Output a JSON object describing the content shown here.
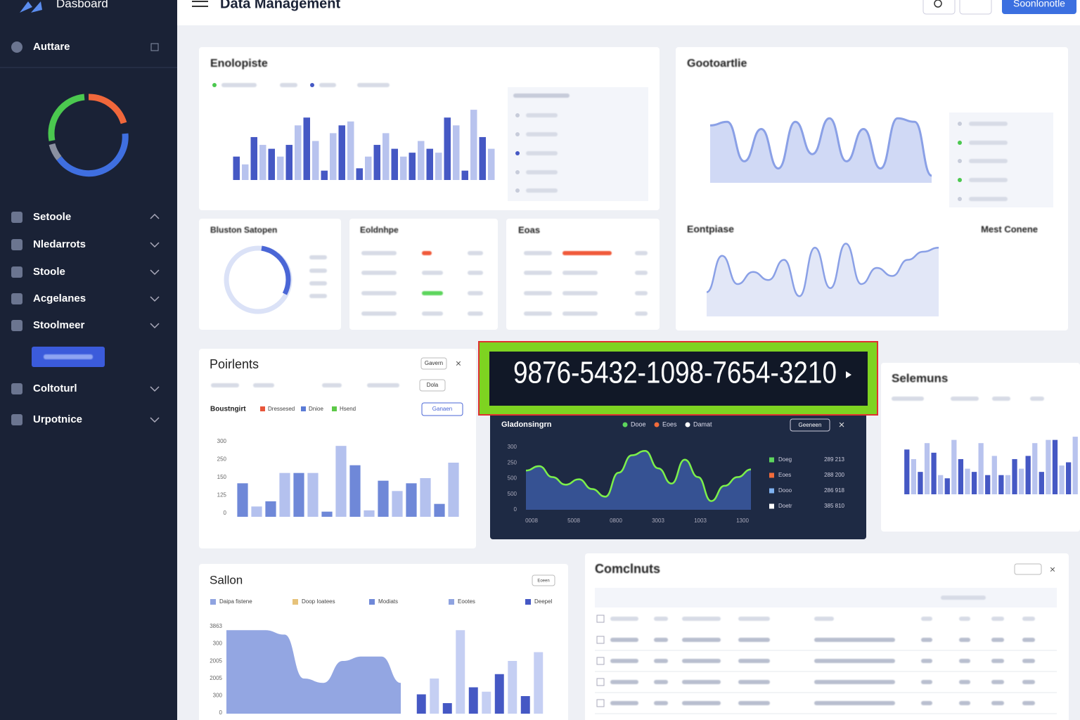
{
  "sidebar": {
    "brand": "Dasboard",
    "top_item": "Auttare",
    "menu": [
      "Setoole",
      "Nledarrots",
      "Stoole",
      "Acgelanes",
      "Stoolmeer",
      "Coltoturl",
      "Urpotnice"
    ]
  },
  "header": {
    "title": "Data Management",
    "button": "Soonlonotle"
  },
  "popup": {
    "text": "9876-5432-1098-7654-3210"
  },
  "cards": {
    "overview": {
      "title": "Enolopiste",
      "ylim": [
        0,
        100
      ],
      "series": [
        {
          "color": "#4558c4",
          "values": [
            30,
            55,
            40,
            45,
            80,
            12,
            70,
            15,
            45,
            40,
            35,
            40,
            80,
            12,
            55
          ]
        },
        {
          "color": "#b8c3ee",
          "values": [
            20,
            45,
            30,
            70,
            50,
            60,
            75,
            30,
            60,
            30,
            50,
            35,
            70,
            90,
            40
          ]
        }
      ]
    },
    "trends": {
      "title": "Gootoartlie",
      "ylim": [
        0,
        100
      ],
      "values": [
        80,
        85,
        30,
        75,
        20,
        85,
        40,
        90,
        30,
        75,
        20,
        90,
        85,
        10
      ]
    },
    "segments": {
      "title": "Eontpiase",
      "subtitle": "Mest Conene",
      "ylim": [
        0,
        100
      ],
      "values": [
        30,
        75,
        40,
        55,
        45,
        70,
        25,
        85,
        35,
        90,
        40,
        60,
        50,
        70,
        80,
        85
      ]
    },
    "ring": {
      "title": "Bluston Satopen"
    },
    "ledger": {
      "title": "Eoldnhpe"
    },
    "eoas": {
      "title": "Eoas"
    },
    "poirlents": {
      "title": "Poirlents",
      "buttons": [
        "Gavern",
        "Dola"
      ],
      "subtitle": "Boustngirt",
      "legend": [
        {
          "name": "Dressesed",
          "color": "#e8553a"
        },
        {
          "name": "Dnioe",
          "color": "#5b7bd6"
        },
        {
          "name": "Hsend",
          "color": "#5dc948"
        }
      ],
      "action": "Ganaen",
      "yaxis_labels": [
        "300",
        "250",
        "150",
        "125",
        "0"
      ],
      "ylim": [
        0,
        300
      ],
      "series": [
        {
          "color": "#6f88d8",
          "values": [
            130,
            60,
            170,
            20,
            200,
            140,
            130,
            50
          ]
        },
        {
          "color": "#b4c1ee",
          "values": [
            40,
            170,
            170,
            275,
            25,
            100,
            150,
            210
          ]
        }
      ]
    },
    "gladonsingrn": {
      "title": "Gladonsingrn",
      "button": "Geeneen",
      "legend": [
        {
          "name": "Dooe",
          "color": "#5dd55d"
        },
        {
          "name": "Eoes",
          "color": "#f26b3a"
        },
        {
          "name": "Damat",
          "color": "#ffffff"
        }
      ],
      "yaxis_labels": [
        "300",
        "250",
        "500",
        "500",
        "0"
      ],
      "xaxis_labels": [
        "0008",
        "5008",
        "0800",
        "3003",
        "1003",
        "1300"
      ],
      "ylim": [
        0,
        300
      ],
      "values": [
        180,
        200,
        150,
        115,
        140,
        95,
        60,
        170,
        250,
        270,
        190,
        120,
        230,
        150,
        40,
        110,
        150,
        185
      ],
      "list": [
        {
          "label": "Doeg",
          "value": "289 213",
          "color": "#5dd55d"
        },
        {
          "label": "Eoes",
          "value": "288 200",
          "color": "#f26b3a"
        },
        {
          "label": "Dooo",
          "value": "286 918",
          "color": "#7fb2f0"
        },
        {
          "label": "Doetr",
          "value": "385 810",
          "color": "#ffffff"
        }
      ]
    },
    "selemuns": {
      "title": "Selemuns",
      "ylim": [
        0,
        100
      ],
      "series": [
        {
          "color": "#4558c4",
          "values": [
            70,
            35,
            65,
            25,
            55,
            35,
            30,
            30,
            55,
            60,
            35,
            85,
            50
          ]
        },
        {
          "color": "#b8c3ee",
          "values": [
            55,
            80,
            30,
            85,
            40,
            80,
            60,
            30,
            40,
            80,
            85,
            45,
            90
          ]
        }
      ]
    },
    "sallon": {
      "title": "Sallon",
      "button": "Eoeen",
      "legend": [
        {
          "name": "Daipa fistene",
          "color": "#8fa3e0"
        },
        {
          "name": "Doop Ioatees",
          "color": "#e6c27a"
        },
        {
          "name": "Modiats",
          "color": "#6f88d8"
        },
        {
          "name": "Eootes",
          "color": "#8fa3e0"
        },
        {
          "name": "Deepel",
          "color": "#4558c4"
        }
      ],
      "yaxis_labels": [
        "3863",
        "300",
        "2005",
        "2005",
        "300",
        "0"
      ],
      "ylim": [
        0,
        100
      ],
      "area": [
        95,
        95,
        95,
        90,
        40,
        35,
        60,
        65,
        65,
        35
      ],
      "bars": [
        {
          "color": "#4558c4",
          "values": [
            22,
            40,
            12,
            95,
            30,
            25,
            45,
            60,
            20,
            70
          ]
        }
      ]
    },
    "comclnuts": {
      "title": "Comclnuts"
    }
  }
}
